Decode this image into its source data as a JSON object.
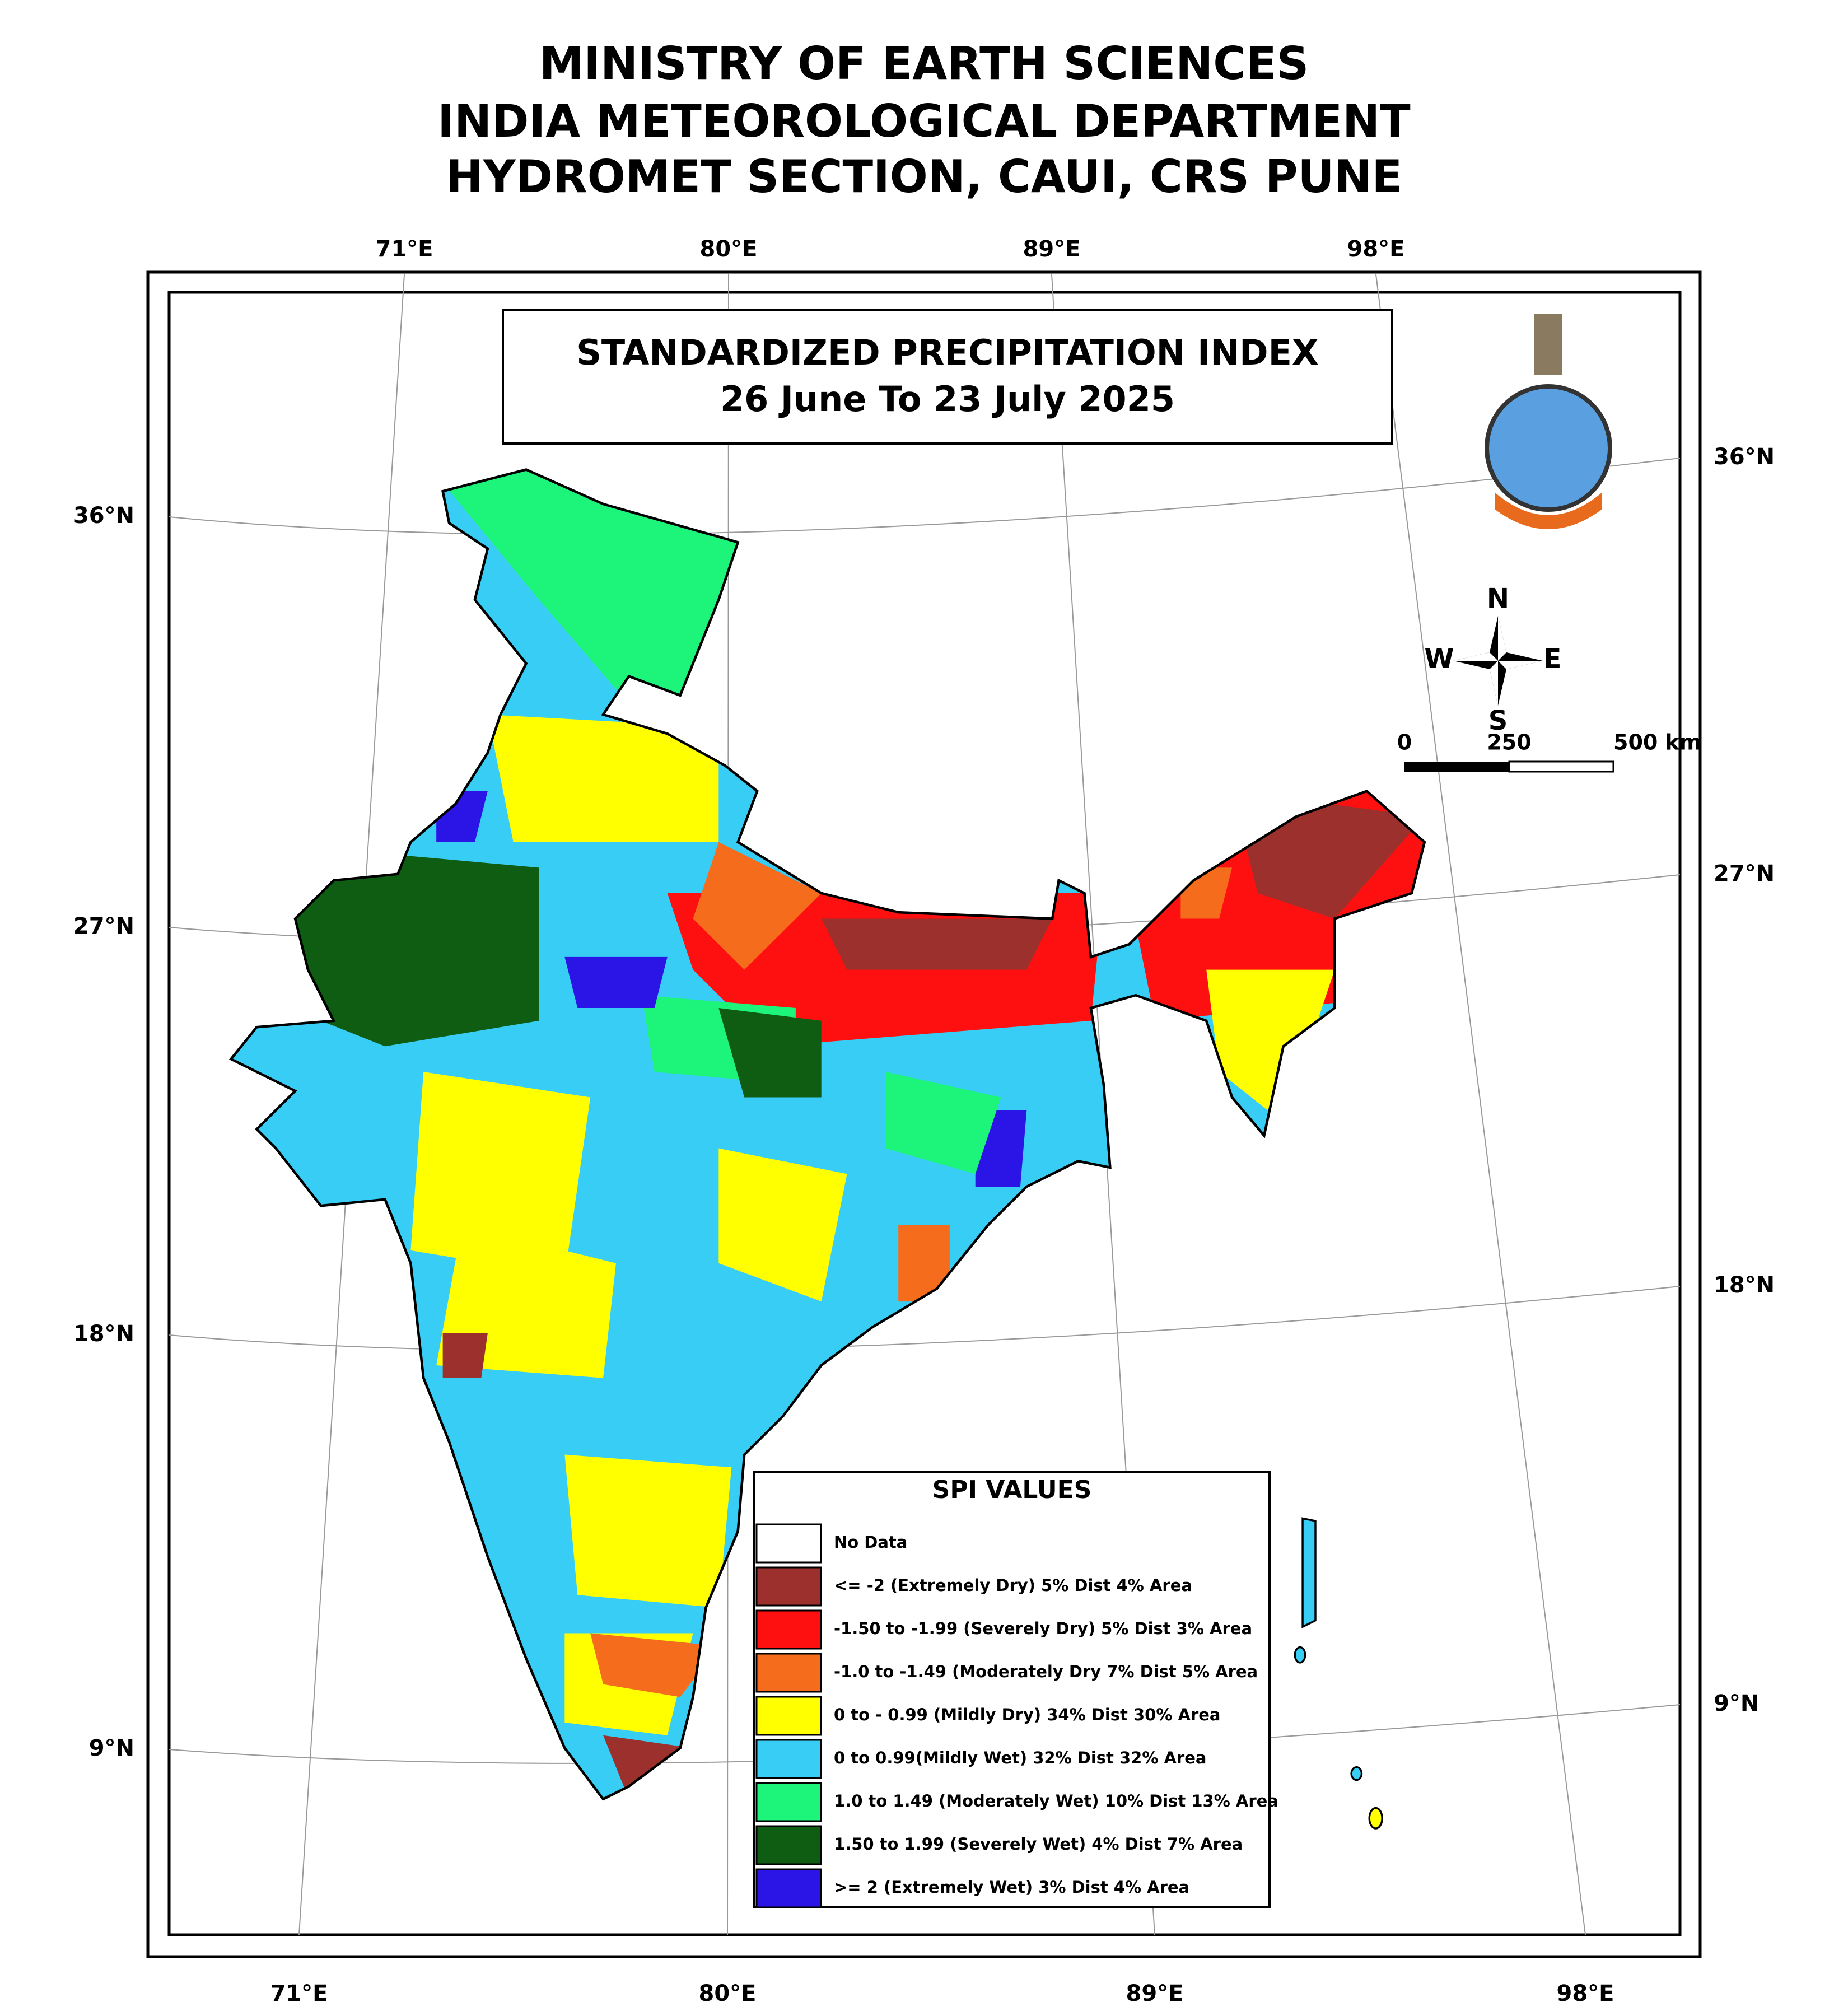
{
  "header": {
    "lines": [
      "MINISTRY OF EARTH SCIENCES",
      "INDIA METEOROLOGICAL DEPARTMENT",
      "HYDROMET SECTION, CAUI, CRS PUNE"
    ]
  },
  "map": {
    "title": "STANDARDIZED PRECIPITATION INDEX",
    "subtitle": "26 June To 23 July 2025",
    "lon_labels_top": [
      "71°E",
      "80°E",
      "89°E",
      "98°E"
    ],
    "lon_labels_bottom": [
      "71°E",
      "80°E",
      "89°E",
      "98°E"
    ],
    "lat_labels_left": [
      "36°N",
      "27°N",
      "18°N",
      "9°N"
    ],
    "lat_labels_right": [
      "36°N",
      "27°N",
      "18°N",
      "9°N"
    ],
    "compass": {
      "n": "N",
      "w": "W",
      "e": "E",
      "s": "S"
    },
    "scale": [
      "0",
      "250",
      "500 km"
    ]
  },
  "legend": {
    "title": "SPI VALUES",
    "items": [
      {
        "label": "No Data",
        "color": "#ffffff"
      },
      {
        "label": "<= -2 (Extremely Dry)   5% Dist   4% Area",
        "color": "#9b302c"
      },
      {
        "label": "-1.50 to -1.99 (Severely Dry)  5% Dist  3% Area",
        "color": "#ff1010"
      },
      {
        "label": "-1.0 to -1.49 (Moderately Dry  7% Dist  5% Area",
        "color": "#f56d1c"
      },
      {
        "label": "0 to - 0.99 (Mildly Dry) 34% Dist  30% Area",
        "color": "#ffff00"
      },
      {
        "label": "0 to  0.99(Mildly Wet)  32% Dist  32% Area",
        "color": "#38cdf5"
      },
      {
        "label": "1.0 to 1.49 (Moderately Wet)  10% Dist  13% Area",
        "color": "#1cf57a"
      },
      {
        "label": "1.50 to 1.99 (Severely Wet)  4% Dist  7% Area",
        "color": "#0f5d12"
      },
      {
        "label": ">= 2 (Extremely Wet)  3% Dist  4% Area",
        "color": "#2a14e6"
      }
    ]
  }
}
